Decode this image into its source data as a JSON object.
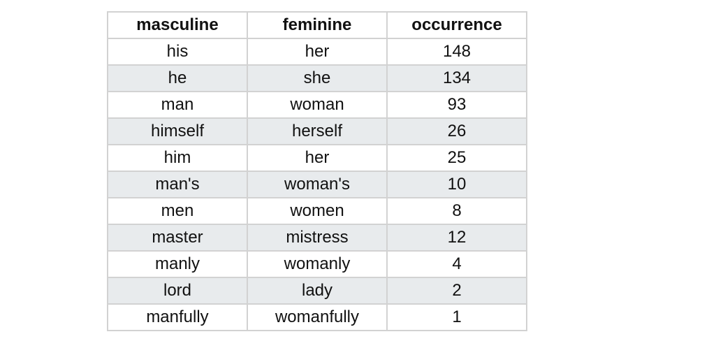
{
  "table": {
    "headers": [
      "masculine",
      "feminine",
      "occurrence"
    ],
    "rows": [
      [
        "his",
        "her",
        "148"
      ],
      [
        "he",
        "she",
        "134"
      ],
      [
        "man",
        "woman",
        "93"
      ],
      [
        "himself",
        "herself",
        "26"
      ],
      [
        "him",
        "her",
        "25"
      ],
      [
        "man's",
        "woman's",
        "10"
      ],
      [
        "men",
        "women",
        "8"
      ],
      [
        "master",
        "mistress",
        "12"
      ],
      [
        "manly",
        "womanly",
        "4"
      ],
      [
        "lord",
        "lady",
        "2"
      ],
      [
        "manfully",
        "womanfully",
        "1"
      ]
    ],
    "stripe_color": "#e8ebed",
    "border_color": "#d2d2d2"
  }
}
